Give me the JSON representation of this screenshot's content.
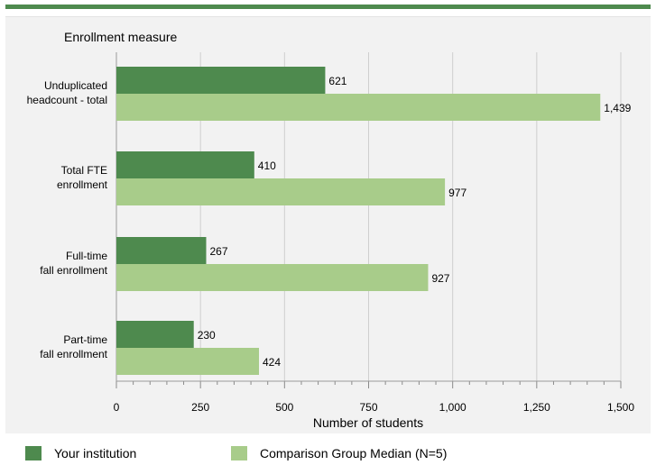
{
  "chart_data": {
    "type": "bar",
    "orientation": "horizontal",
    "title": "Enrollment measure",
    "xlabel": "Number of students",
    "categories": [
      [
        "Unduplicated",
        "headcount - total"
      ],
      [
        "Total FTE",
        "enrollment"
      ],
      [
        "Full-time",
        "fall enrollment"
      ],
      [
        "Part-time",
        "fall enrollment"
      ]
    ],
    "series": [
      {
        "name": "Your institution",
        "color": "#4e8a4e",
        "values": [
          621,
          410,
          267,
          230
        ],
        "labels": [
          "621",
          "410",
          "267",
          "230"
        ]
      },
      {
        "name": "Comparison Group Median (N=5)",
        "color": "#a8cc8a",
        "values": [
          1439,
          977,
          927,
          424
        ],
        "labels": [
          "1,439",
          "977",
          "927",
          "424"
        ]
      }
    ],
    "xlim": [
      0,
      1500
    ],
    "xticks": [
      0,
      250,
      500,
      750,
      1000,
      1250,
      1500
    ],
    "xtick_labels": [
      "0",
      "250",
      "500",
      "750",
      "1,000",
      "1,250",
      "1,500"
    ],
    "grid": true,
    "legend_position": "bottom"
  },
  "legend": {
    "items": [
      {
        "label": "Your institution",
        "color": "#4e8a4e"
      },
      {
        "label": "Comparison Group Median (N=5)",
        "color": "#a8cc8a"
      }
    ]
  }
}
